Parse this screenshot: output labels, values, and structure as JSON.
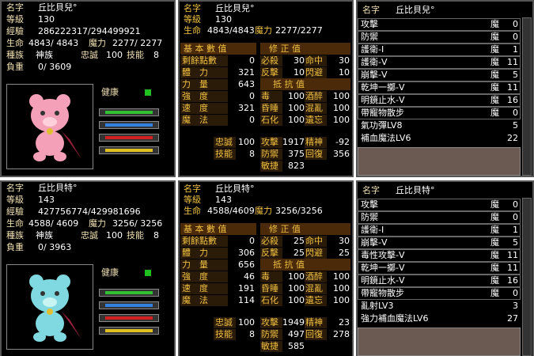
{
  "pets": [
    {
      "info": {
        "rows": [
          [
            "名字",
            "丘比貝兒°"
          ],
          [
            "等級",
            "130"
          ],
          [
            "經驗",
            "286222317/294499921"
          ],
          [
            "生命",
            "4843/ 4843",
            "魔力",
            "2277/ 2277"
          ],
          [
            "種族",
            "神族",
            "忠誠",
            "100",
            "技能",
            "8"
          ],
          [
            "負重",
            "0/ 3609"
          ]
        ],
        "health": "健康"
      },
      "stats": {
        "header": [
          [
            "名字",
            "丘比貝兒°"
          ],
          [
            "等級",
            "130"
          ],
          [
            "生命",
            "4843/4843",
            "魔力",
            "2277/2277"
          ]
        ],
        "base_title": "基 本 數 值",
        "mod_title": "修 正 值",
        "base": [
          [
            "剩餘點數",
            "0"
          ],
          [
            "體　力",
            "321"
          ],
          [
            "力　量",
            "643"
          ],
          [
            "強　度",
            "0"
          ],
          [
            "速　度",
            "321"
          ],
          [
            "魔　法",
            "0"
          ]
        ],
        "mod": [
          [
            "必殺",
            "30",
            "命中",
            "30"
          ],
          [
            "反擊",
            "10",
            "閃避",
            "10"
          ]
        ],
        "resist_title": "抵 抗 值",
        "resist": [
          [
            "毒",
            "100",
            "酒醉",
            "100"
          ],
          [
            "昏睡",
            "100",
            "混亂",
            "100"
          ],
          [
            "石化",
            "100",
            "遺忘",
            "100"
          ]
        ],
        "extra_left": [
          [
            "忠誠",
            "100"
          ],
          [
            "技能",
            "8"
          ]
        ],
        "extra_right": [
          [
            "攻擊",
            "1917",
            "精神",
            "-92"
          ],
          [
            "防禦",
            "375",
            "回復",
            "356"
          ],
          [
            "敏捷",
            "823"
          ]
        ]
      },
      "skills": {
        "header": [
          "名字",
          "丘比貝兒°"
        ],
        "commands": [
          [
            "攻擊",
            "魔",
            "0"
          ],
          [
            "防禦",
            "魔",
            "0"
          ],
          [
            "護衛-I",
            "魔",
            "1"
          ],
          [
            "護衛-V",
            "魔",
            "11"
          ],
          [
            "崩擊-V",
            "魔",
            "5"
          ],
          [
            "乾坤一擲-V",
            "魔",
            "11"
          ],
          [
            "明鏡止水-V",
            "魔",
            "16"
          ],
          [
            "帶寵物散步",
            "魔",
            "0"
          ]
        ],
        "skills": [
          [
            "氣功彈LV8",
            "5"
          ],
          [
            "補血魔法LV6",
            "22"
          ]
        ]
      }
    },
    {
      "info": {
        "rows": [
          [
            "名字",
            "丘比貝特°"
          ],
          [
            "等級",
            "143"
          ],
          [
            "經驗",
            "427756774/429981696"
          ],
          [
            "生命",
            "4588/ 4609",
            "魔力",
            "3256/ 3256"
          ],
          [
            "種族",
            "神族",
            "忠誠",
            "100",
            "技能",
            "8"
          ],
          [
            "負重",
            "0/ 3963"
          ]
        ],
        "health": "健康"
      },
      "stats": {
        "header": [
          [
            "名字",
            "丘比貝特°"
          ],
          [
            "等級",
            "143"
          ],
          [
            "生命",
            "4588/4609",
            "魔力",
            "3256/3256"
          ]
        ],
        "base_title": "基 本 數 值",
        "mod_title": "修 正 值",
        "base": [
          [
            "剩餘點數",
            "0"
          ],
          [
            "體　力",
            "306"
          ],
          [
            "力　量",
            "656"
          ],
          [
            "強　度",
            "46"
          ],
          [
            "速　度",
            "191"
          ],
          [
            "魔　法",
            "114"
          ]
        ],
        "mod": [
          [
            "必殺",
            "25",
            "命中",
            "30"
          ],
          [
            "反擊",
            "25",
            "閃避",
            "25"
          ]
        ],
        "resist_title": "抵 抗 值",
        "resist": [
          [
            "毒",
            "100",
            "酒醉",
            "100"
          ],
          [
            "昏睡",
            "100",
            "混亂",
            "100"
          ],
          [
            "石化",
            "100",
            "遺忘",
            "100"
          ]
        ],
        "extra_left": [
          [
            "忠誠",
            "100"
          ],
          [
            "技能",
            "8"
          ]
        ],
        "extra_right": [
          [
            "攻擊",
            "1949",
            "精神",
            "23"
          ],
          [
            "防禦",
            "497",
            "回復",
            "278"
          ],
          [
            "敏捷",
            "585"
          ]
        ]
      },
      "skills": {
        "header": [
          "名字",
          "丘比貝特°"
        ],
        "commands": [
          [
            "攻擊",
            "魔",
            "0"
          ],
          [
            "防禦",
            "魔",
            "0"
          ],
          [
            "護衛-I",
            "魔",
            "1"
          ],
          [
            "崩擊-V",
            "魔",
            "5"
          ],
          [
            "毒性攻擊-V",
            "魔",
            "11"
          ],
          [
            "乾坤一擲-V",
            "魔",
            "11"
          ],
          [
            "明鏡止水-V",
            "魔",
            "16"
          ],
          [
            "帶寵物散步",
            "魔",
            "0"
          ]
        ],
        "skills": [
          [
            "亂射LV3",
            "3"
          ],
          [
            "強力補血魔法LV6",
            "27"
          ]
        ]
      }
    }
  ]
}
